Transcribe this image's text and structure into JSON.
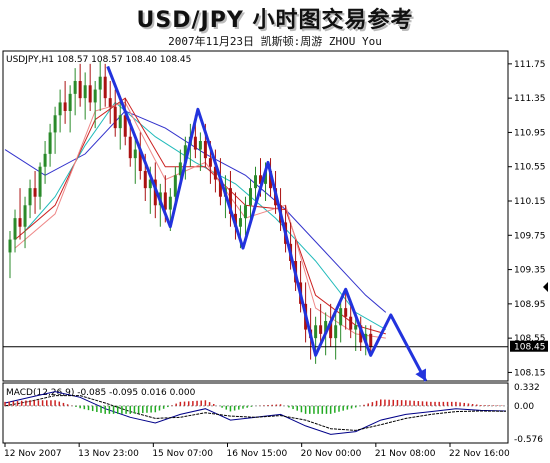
{
  "header": {
    "title": "USD/JPY 小时图交易参考",
    "subtitle": "2007年11月23日  凯斯顿:周游 ZHOU You"
  },
  "chart_data": {
    "type": "line",
    "symbol_label": "USDJPY,H1  108.57 108.57 108.40 108.45",
    "price_axis": {
      "ticks": [
        111.75,
        111.35,
        110.95,
        110.55,
        110.15,
        109.75,
        109.35,
        108.95,
        108.55,
        108.15
      ],
      "tick_labels": [
        "111.75",
        "111.35",
        "110.95",
        "110.55",
        "110.15",
        "109.75",
        "109.35",
        "108.95",
        "108.55",
        "108.15"
      ],
      "current_price": 108.45,
      "current_price_label": "108.45",
      "ylim": [
        108.05,
        111.9
      ]
    },
    "time_axis": {
      "tick_labels": [
        "12 Nov 2007",
        "13 Nov 23:00",
        "15 Nov 07:00",
        "16 Nov 15:00",
        "20 Nov 00:00",
        "21 Nov 08:00",
        "22 Nov 16:00"
      ]
    },
    "zigzag_projection": {
      "name": "",
      "points": [
        [
          0.205,
          111.72
        ],
        [
          0.33,
          109.85
        ],
        [
          0.385,
          111.22
        ],
        [
          0.475,
          109.6
        ],
        [
          0.525,
          110.6
        ],
        [
          0.62,
          108.35
        ],
        [
          0.68,
          109.12
        ],
        [
          0.73,
          108.35
        ],
        [
          0.77,
          108.82
        ],
        [
          0.84,
          108.05
        ]
      ]
    },
    "moving_averages": [
      {
        "color": "#3333cc",
        "values": [
          [
            0.0,
            110.75
          ],
          [
            0.08,
            110.45
          ],
          [
            0.16,
            110.7
          ],
          [
            0.24,
            111.2
          ],
          [
            0.32,
            111.0
          ],
          [
            0.4,
            110.7
          ],
          [
            0.48,
            110.45
          ],
          [
            0.56,
            110.05
          ],
          [
            0.64,
            109.55
          ],
          [
            0.72,
            109.05
          ],
          [
            0.76,
            108.85
          ]
        ]
      },
      {
        "color": "#22bbbb",
        "values": [
          [
            0.04,
            109.8
          ],
          [
            0.1,
            110.2
          ],
          [
            0.16,
            110.8
          ],
          [
            0.22,
            111.3
          ],
          [
            0.3,
            110.9
          ],
          [
            0.38,
            110.6
          ],
          [
            0.46,
            110.35
          ],
          [
            0.54,
            109.95
          ],
          [
            0.62,
            109.45
          ],
          [
            0.7,
            108.85
          ],
          [
            0.76,
            108.65
          ]
        ]
      },
      {
        "color": "#cc2222",
        "values": [
          [
            0.02,
            109.7
          ],
          [
            0.1,
            110.1
          ],
          [
            0.18,
            111.1
          ],
          [
            0.24,
            111.35
          ],
          [
            0.32,
            110.55
          ],
          [
            0.4,
            110.55
          ],
          [
            0.48,
            110.1
          ],
          [
            0.56,
            110.05
          ],
          [
            0.62,
            109.05
          ],
          [
            0.7,
            108.7
          ],
          [
            0.76,
            108.6
          ]
        ]
      },
      {
        "color": "#ee8888",
        "values": [
          [
            0.02,
            109.6
          ],
          [
            0.1,
            110.0
          ],
          [
            0.18,
            111.2
          ],
          [
            0.24,
            111.3
          ],
          [
            0.32,
            110.4
          ],
          [
            0.4,
            110.6
          ],
          [
            0.48,
            109.95
          ],
          [
            0.56,
            110.1
          ],
          [
            0.62,
            108.9
          ],
          [
            0.7,
            108.6
          ],
          [
            0.76,
            108.55
          ]
        ]
      }
    ],
    "candles": [
      [
        0.01,
        109.55,
        109.8,
        109.25,
        109.7
      ],
      [
        0.02,
        109.7,
        110.05,
        109.55,
        109.95
      ],
      [
        0.03,
        109.95,
        110.3,
        109.7,
        109.85
      ],
      [
        0.04,
        109.85,
        110.2,
        109.6,
        110.1
      ],
      [
        0.05,
        110.1,
        110.4,
        109.95,
        110.3
      ],
      [
        0.06,
        110.3,
        110.5,
        110.0,
        110.2
      ],
      [
        0.07,
        110.2,
        110.6,
        110.05,
        110.55
      ],
      [
        0.08,
        110.55,
        110.85,
        110.35,
        110.7
      ],
      [
        0.09,
        110.7,
        111.05,
        110.55,
        110.95
      ],
      [
        0.1,
        110.95,
        111.25,
        110.7,
        111.15
      ],
      [
        0.11,
        111.15,
        111.45,
        110.95,
        111.3
      ],
      [
        0.12,
        111.3,
        111.55,
        111.05,
        111.2
      ],
      [
        0.13,
        111.2,
        111.5,
        110.95,
        111.4
      ],
      [
        0.14,
        111.4,
        111.7,
        111.15,
        111.55
      ],
      [
        0.15,
        111.55,
        111.75,
        111.25,
        111.35
      ],
      [
        0.16,
        111.35,
        111.65,
        111.1,
        111.5
      ],
      [
        0.17,
        111.5,
        111.75,
        111.2,
        111.3
      ],
      [
        0.18,
        111.3,
        111.55,
        111.0,
        111.45
      ],
      [
        0.19,
        111.45,
        111.78,
        111.2,
        111.6
      ],
      [
        0.2,
        111.6,
        111.75,
        111.25,
        111.35
      ],
      [
        0.21,
        111.35,
        111.55,
        111.05,
        111.25
      ],
      [
        0.22,
        111.25,
        111.45,
        110.9,
        111.0
      ],
      [
        0.23,
        111.0,
        111.3,
        110.75,
        111.15
      ],
      [
        0.24,
        111.15,
        111.35,
        110.8,
        110.9
      ],
      [
        0.25,
        110.9,
        111.1,
        110.55,
        110.65
      ],
      [
        0.26,
        110.65,
        110.9,
        110.35,
        110.75
      ],
      [
        0.27,
        110.75,
        110.95,
        110.4,
        110.5
      ],
      [
        0.28,
        110.5,
        110.7,
        110.15,
        110.3
      ],
      [
        0.29,
        110.3,
        110.55,
        110.0,
        110.4
      ],
      [
        0.3,
        110.4,
        110.6,
        109.95,
        110.1
      ],
      [
        0.31,
        110.1,
        110.35,
        109.85,
        110.25
      ],
      [
        0.32,
        110.25,
        110.45,
        109.9,
        110.05
      ],
      [
        0.33,
        110.05,
        110.3,
        109.8,
        110.2
      ],
      [
        0.34,
        110.2,
        110.55,
        110.05,
        110.45
      ],
      [
        0.35,
        110.45,
        110.75,
        110.3,
        110.6
      ],
      [
        0.36,
        110.6,
        110.9,
        110.4,
        110.8
      ],
      [
        0.37,
        110.8,
        111.05,
        110.55,
        110.9
      ],
      [
        0.38,
        110.9,
        111.15,
        110.65,
        110.75
      ],
      [
        0.39,
        110.75,
        110.95,
        110.5,
        110.85
      ],
      [
        0.4,
        110.85,
        111.05,
        110.55,
        110.65
      ],
      [
        0.41,
        110.65,
        110.85,
        110.35,
        110.55
      ],
      [
        0.42,
        110.55,
        110.75,
        110.25,
        110.4
      ],
      [
        0.43,
        110.4,
        110.65,
        110.1,
        110.2
      ],
      [
        0.44,
        110.2,
        110.45,
        109.95,
        110.3
      ],
      [
        0.45,
        110.3,
        110.5,
        109.85,
        110.0
      ],
      [
        0.46,
        110.0,
        110.25,
        109.7,
        109.85
      ],
      [
        0.47,
        109.85,
        110.1,
        109.6,
        109.95
      ],
      [
        0.48,
        109.95,
        110.2,
        109.75,
        110.1
      ],
      [
        0.49,
        110.1,
        110.4,
        109.9,
        110.3
      ],
      [
        0.5,
        110.3,
        110.55,
        110.1,
        110.45
      ],
      [
        0.51,
        110.45,
        110.65,
        110.2,
        110.35
      ],
      [
        0.52,
        110.35,
        110.6,
        110.15,
        110.5
      ],
      [
        0.53,
        110.5,
        110.65,
        110.2,
        110.3
      ],
      [
        0.54,
        110.3,
        110.5,
        110.0,
        110.1
      ],
      [
        0.55,
        110.1,
        110.3,
        109.8,
        109.9
      ],
      [
        0.56,
        109.9,
        110.1,
        109.55,
        109.65
      ],
      [
        0.57,
        109.65,
        109.9,
        109.35,
        109.45
      ],
      [
        0.58,
        109.45,
        109.7,
        109.1,
        109.2
      ],
      [
        0.59,
        109.2,
        109.45,
        108.85,
        108.95
      ],
      [
        0.6,
        108.95,
        109.2,
        108.5,
        108.65
      ],
      [
        0.61,
        108.65,
        108.9,
        108.3,
        108.55
      ],
      [
        0.62,
        108.55,
        108.8,
        108.25,
        108.7
      ],
      [
        0.63,
        108.7,
        108.95,
        108.45,
        108.6
      ],
      [
        0.64,
        108.6,
        108.85,
        108.35,
        108.75
      ],
      [
        0.65,
        108.75,
        108.95,
        108.45,
        108.55
      ],
      [
        0.66,
        108.55,
        108.85,
        108.3,
        108.7
      ],
      [
        0.67,
        108.7,
        109.0,
        108.5,
        108.9
      ],
      [
        0.68,
        108.9,
        109.1,
        108.65,
        108.8
      ],
      [
        0.69,
        108.8,
        109.0,
        108.55,
        108.65
      ],
      [
        0.7,
        108.65,
        108.85,
        108.4,
        108.7
      ],
      [
        0.71,
        108.7,
        108.8,
        108.4,
        108.5
      ],
      [
        0.72,
        108.5,
        108.7,
        108.35,
        108.6
      ],
      [
        0.73,
        108.6,
        108.7,
        108.38,
        108.45
      ]
    ],
    "macd": {
      "label": "MACD(12,26,9) -0.085 -0.095 0.016 0.000",
      "ticks": [
        0.332,
        0.0,
        -0.576
      ],
      "tick_labels": [
        "0.332",
        "0.00",
        "-0.576"
      ],
      "ylim": [
        -0.65,
        0.4
      ],
      "main": [
        [
          0.0,
          0.05
        ],
        [
          0.05,
          0.15
        ],
        [
          0.1,
          0.25
        ],
        [
          0.15,
          0.15
        ],
        [
          0.2,
          -0.05
        ],
        [
          0.25,
          -0.2
        ],
        [
          0.3,
          -0.3
        ],
        [
          0.35,
          -0.15
        ],
        [
          0.4,
          -0.05
        ],
        [
          0.45,
          -0.25
        ],
        [
          0.5,
          -0.2
        ],
        [
          0.55,
          -0.15
        ],
        [
          0.6,
          -0.35
        ],
        [
          0.65,
          -0.5
        ],
        [
          0.7,
          -0.45
        ],
        [
          0.75,
          -0.25
        ],
        [
          0.8,
          -0.15
        ],
        [
          0.85,
          -0.1
        ],
        [
          0.9,
          -0.05
        ],
        [
          0.95,
          -0.08
        ],
        [
          1.0,
          -0.09
        ]
      ],
      "signal": [
        [
          0.0,
          0.0
        ],
        [
          0.05,
          0.08
        ],
        [
          0.1,
          0.18
        ],
        [
          0.15,
          0.18
        ],
        [
          0.2,
          0.05
        ],
        [
          0.25,
          -0.1
        ],
        [
          0.3,
          -0.22
        ],
        [
          0.35,
          -0.2
        ],
        [
          0.4,
          -0.12
        ],
        [
          0.45,
          -0.18
        ],
        [
          0.5,
          -0.2
        ],
        [
          0.55,
          -0.17
        ],
        [
          0.6,
          -0.25
        ],
        [
          0.65,
          -0.4
        ],
        [
          0.7,
          -0.43
        ],
        [
          0.75,
          -0.33
        ],
        [
          0.8,
          -0.22
        ],
        [
          0.85,
          -0.15
        ],
        [
          0.9,
          -0.1
        ],
        [
          0.95,
          -0.09
        ],
        [
          1.0,
          -0.095
        ]
      ]
    }
  }
}
